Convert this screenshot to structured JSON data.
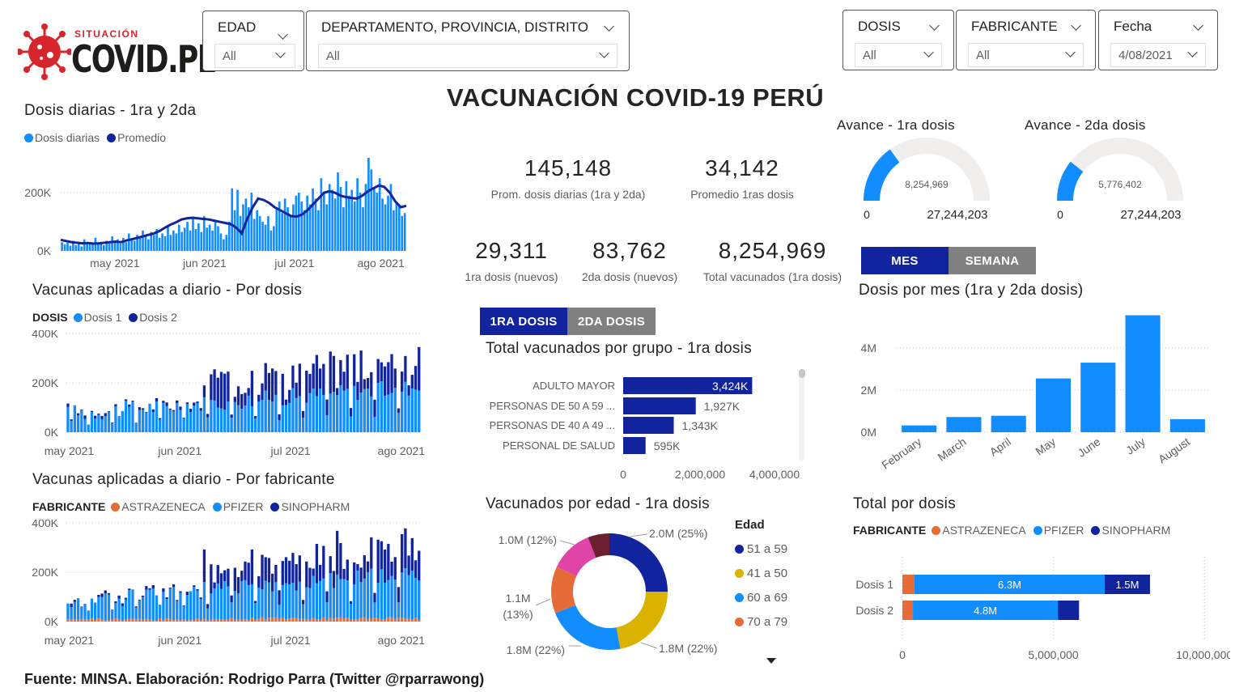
{
  "header": {
    "logo_small": "SITUACIÓN",
    "logo_big": "COVID.PE",
    "main_title": "VACUNACIÓN COVID-19 PERÚ",
    "footer": "Fuente: MINSA. Elaboración: Rodrigo Parra (Twitter @rparrawong)"
  },
  "filters": {
    "edad": {
      "label": "EDAD",
      "value": "All"
    },
    "region": {
      "label": "DEPARTAMENTO, PROVINCIA, DISTRITO",
      "value": "All"
    },
    "dosis": {
      "label": "DOSIS",
      "value": "All"
    },
    "fabricante": {
      "label": "FABRICANTE",
      "value": "All"
    },
    "fecha": {
      "label": "Fecha",
      "value": "4/08/2021"
    }
  },
  "colors": {
    "light_blue": "#118dff",
    "dark_blue": "#12239e",
    "orange": "#e66c37",
    "gray": "#808080",
    "gauge_bg": "#f0efee",
    "magenta": "#e044a7",
    "gold": "#d9b300",
    "maroon": "#6b1f2f"
  },
  "kpis": {
    "prom_diarias": {
      "value": "145,148",
      "label": "Prom. dosis diarias (1ra y 2da)"
    },
    "prom_1ras": {
      "value": "34,142",
      "label": "Promedio 1ras dosis"
    },
    "dosis1_nuevos": {
      "value": "29,311",
      "label": "1ra dosis (nuevos)"
    },
    "dosis2_nuevos": {
      "value": "83,762",
      "label": "2da dosis (nuevos)"
    },
    "total_vacunados": {
      "value": "8,254,969",
      "label": "Total vacunados (1ra dosis)"
    }
  },
  "gauges": [
    {
      "title": "Avance - 1ra dosis",
      "value_label": "8,254,969",
      "value": 8254969,
      "min_label": "0",
      "max_label": "27,244,203",
      "max": 27244203
    },
    {
      "title": "Avance - 2da dosis",
      "value_label": "5,776,402",
      "value": 5776402,
      "min_label": "0",
      "max_label": "27,244,203",
      "max": 27244203
    }
  ],
  "toggles": {
    "mes": "MES",
    "semana": "SEMANA",
    "dosis1": "1RA DOSIS",
    "dosis2": "2DA DOSIS"
  },
  "chart_data": [
    {
      "id": "daily",
      "type": "bar",
      "title": "Dosis diarias - 1ra y 2da",
      "legend": [
        "Dosis diarias",
        "Promedio"
      ],
      "ytick_labels": [
        "0K",
        "200K"
      ],
      "xtick_labels": [
        "may 2021",
        "jun 2021",
        "jul 2021",
        "ago 2021"
      ],
      "ylim": [
        0,
        320000
      ],
      "values": [
        30000,
        22000,
        28000,
        18000,
        35000,
        20000,
        25000,
        15000,
        40000,
        30000,
        22000,
        28000,
        45000,
        26000,
        30000,
        20000,
        35000,
        25000,
        50000,
        30000,
        40000,
        25000,
        45000,
        30000,
        60000,
        40000,
        35000,
        55000,
        45000,
        70000,
        50000,
        40000,
        65000,
        55000,
        75000,
        45000,
        60000,
        50000,
        85000,
        55000,
        70000,
        60000,
        90000,
        65000,
        80000,
        100000,
        70000,
        110000,
        75000,
        95000,
        65000,
        120000,
        80000,
        90000,
        70000,
        100000,
        85000,
        60000,
        40000,
        55000,
        100000,
        215000,
        140000,
        210000,
        120000,
        160000,
        180000,
        150000,
        200000,
        110000,
        140000,
        120000,
        100000,
        90000,
        120000,
        70000,
        85000,
        150000,
        170000,
        130000,
        180000,
        150000,
        120000,
        160000,
        190000,
        200000,
        170000,
        140000,
        190000,
        160000,
        215000,
        180000,
        140000,
        250000,
        200000,
        160000,
        230000,
        210000,
        180000,
        270000,
        220000,
        150000,
        240000,
        190000,
        210000,
        170000,
        250000,
        200000,
        150000,
        230000,
        320000,
        280000,
        220000,
        200000,
        250000,
        180000,
        160000,
        190000,
        230000,
        140000,
        170000,
        160000,
        120000,
        130000
      ],
      "avg": [
        38000,
        34000,
        30000,
        28000,
        26000,
        27000,
        25000,
        26000,
        28000,
        30000,
        32000,
        30000,
        36000,
        40000,
        45000,
        50000,
        55000,
        60000,
        68000,
        80000,
        90000,
        98000,
        108000,
        112000,
        114000,
        112000,
        110000,
        108000,
        104000,
        100000,
        96000,
        92000,
        80000,
        60000,
        110000,
        150000,
        180000,
        175000,
        165000,
        150000,
        140000,
        130000,
        120000,
        118000,
        125000,
        140000,
        160000,
        180000,
        200000,
        205000,
        200000,
        190000,
        185000,
        182000,
        180000,
        190000,
        205000,
        215000,
        225000,
        220000,
        200000,
        170000,
        150000,
        155000
      ],
      "series": [
        {
          "name": "Dosis diarias"
        },
        {
          "name": "Promedio"
        }
      ]
    },
    {
      "id": "por_dosis",
      "type": "bar",
      "title": "Vacunas aplicadas a diario - Por dosis",
      "legend_title": "DOSIS",
      "legend": [
        "Dosis 1",
        "Dosis 2"
      ],
      "ytick_labels": [
        "0K",
        "200K",
        "400K"
      ],
      "xtick_labels": [
        "may 2021",
        "jun 2021",
        "jul 2021",
        "ago 2021"
      ],
      "ylim": [
        0,
        400000
      ],
      "series": [
        {
          "name": "Dosis 1"
        },
        {
          "name": "Dosis 2"
        }
      ]
    },
    {
      "id": "por_fabricante",
      "type": "bar",
      "title": "Vacunas aplicadas a diario - Por fabricante",
      "legend_title": "FABRICANTE",
      "legend": [
        "ASTRAZENECA",
        "PFIZER",
        "SINOPHARM"
      ],
      "ytick_labels": [
        "0K",
        "200K",
        "400K"
      ],
      "xtick_labels": [
        "may 2021",
        "jun 2021",
        "jul 2021",
        "ago 2021"
      ],
      "ylim": [
        0,
        400000
      ],
      "series": [
        {
          "name": "ASTRAZENECA"
        },
        {
          "name": "PFIZER"
        },
        {
          "name": "SINOPHARM"
        }
      ]
    },
    {
      "id": "grupo",
      "type": "bar",
      "title": "Total vacunados por grupo - 1ra dosis",
      "categories": [
        "ADULTO MAYOR",
        "PERSONAS DE 50 A 59 ...",
        "PERSONAS DE 40 A 49 ...",
        "PERSONAL DE SALUD"
      ],
      "values": [
        3424000,
        1927000,
        1343000,
        595000
      ],
      "value_labels": [
        "3,424K",
        "1,927K",
        "1,343K",
        "595K"
      ],
      "xtick_labels": [
        "0",
        "2,000,000",
        "4,000,000"
      ],
      "xlim": [
        0,
        4000000
      ]
    },
    {
      "id": "mes",
      "type": "bar",
      "title": "Dosis por mes (1ra y 2da dosis)",
      "categories": [
        "February",
        "March",
        "April",
        "May",
        "June",
        "July",
        "August"
      ],
      "values": [
        320000,
        720000,
        780000,
        2550000,
        3300000,
        5550000,
        620000
      ],
      "ytick_labels": [
        "0M",
        "2M",
        "4M"
      ],
      "ylim": [
        0,
        5800000
      ]
    },
    {
      "id": "edad",
      "type": "pie",
      "title": "Vacunados por edad - 1ra dosis",
      "legend_title": "Edad",
      "legend": [
        "51 a 59",
        "41 a 50",
        "60 a 69",
        "70 a 79"
      ],
      "slices": [
        {
          "value": 25,
          "label": "2.0M (25%)"
        },
        {
          "value": 22,
          "label": "1.8M (22%)"
        },
        {
          "value": 22,
          "label": "1.8M (22%)"
        },
        {
          "value": 13,
          "label_line1": "1.1M",
          "label_line2": "(13%)"
        },
        {
          "value": 12,
          "label": "1.0M (12%)"
        },
        {
          "value": 6
        }
      ]
    },
    {
      "id": "total_dosis",
      "type": "bar",
      "title": "Total por dosis",
      "legend_title": "FABRICANTE",
      "legend": [
        "ASTRAZENECA",
        "PFIZER",
        "SINOPHARM"
      ],
      "categories": [
        "Dosis 1",
        "Dosis 2"
      ],
      "series": [
        {
          "name": "ASTRAZENECA",
          "values": [
            400000,
            350000
          ]
        },
        {
          "name": "PFIZER",
          "values": [
            6300000,
            4800000
          ],
          "labels": [
            "6.3M",
            "4.8M"
          ]
        },
        {
          "name": "SINOPHARM",
          "values": [
            1500000,
            700000
          ],
          "labels": [
            "1.5M",
            ""
          ]
        }
      ],
      "xtick_labels": [
        "0",
        "5,000,000",
        "10,000,000"
      ],
      "xlim": [
        0,
        10000000
      ]
    }
  ]
}
